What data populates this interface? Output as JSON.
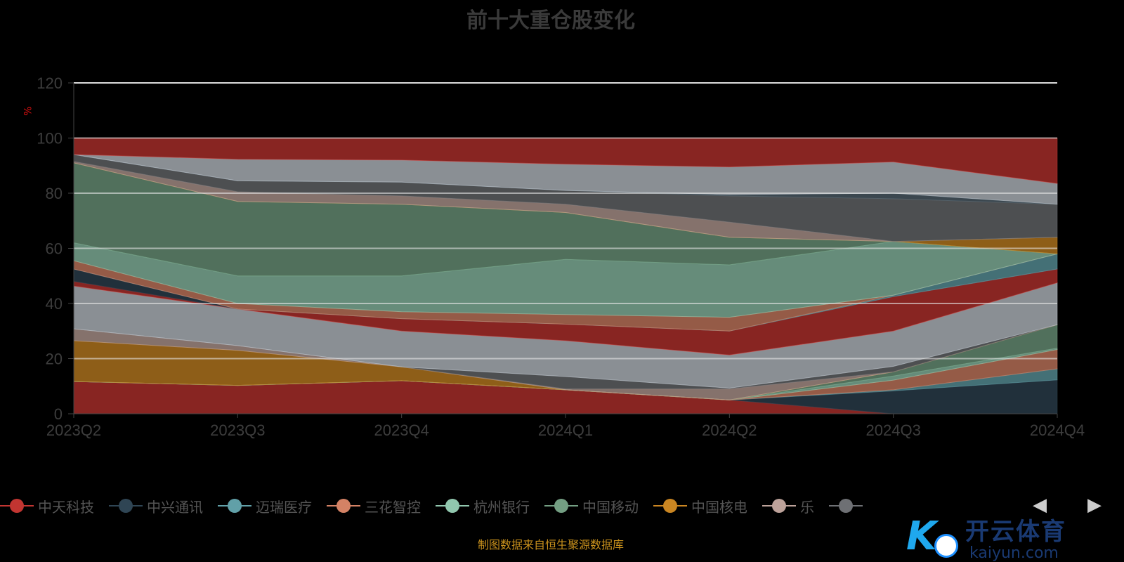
{
  "chart_data": {
    "type": "area",
    "stacked": true,
    "title": "前十大重仓股变化",
    "ylabel": "%",
    "xlabel": "",
    "ylim": [
      0,
      120
    ],
    "yticks": [
      "0",
      "20",
      "40",
      "60",
      "80",
      "100",
      "120"
    ],
    "categories": [
      "2023Q2",
      "2023Q3",
      "2023Q4",
      "2024Q1",
      "2024Q2",
      "2024Q3",
      "2024Q4"
    ],
    "grid": true,
    "legend_position": "bottom",
    "series": [
      {
        "name": "中天科技",
        "color": "#c23531",
        "values": [
          11.7,
          10.3,
          12,
          8.7,
          5,
          0,
          0
        ]
      },
      {
        "name": "中兴通讯",
        "color": "#2f4554",
        "values": [
          0,
          0,
          0,
          0,
          0,
          8.3,
          12.3
        ]
      },
      {
        "name": "迈瑞医疗",
        "color": "#61a0a8",
        "values": [
          0,
          0,
          0,
          0,
          0,
          0.4,
          4
        ]
      },
      {
        "name": "三花智控",
        "color": "#d48265",
        "values": [
          0,
          0,
          0,
          0,
          0,
          3.5,
          7
        ]
      },
      {
        "name": "杭州银行",
        "color": "#91c7ae",
        "values": [
          0,
          0,
          0,
          0,
          0,
          1.5,
          0.5
        ]
      },
      {
        "name": "中国移动",
        "color": "#749f83",
        "values": [
          0,
          0,
          0,
          0,
          0,
          1.5,
          8.5
        ]
      },
      {
        "name": "中国核电",
        "color": "#ca8622",
        "values": [
          14.8,
          12.7,
          5,
          0,
          0,
          0,
          0
        ]
      },
      {
        "name": "乐",
        "color": "#bda29a",
        "values": [
          4.3,
          1.7,
          0,
          0.3,
          4,
          0,
          0
        ]
      },
      {
        "name": "",
        "color": "#6e7074",
        "values": [
          0,
          0,
          0,
          4.5,
          0.3,
          2,
          0
        ]
      },
      {
        "name": "",
        "color": "#c4ccd3",
        "values": [
          15.5,
          13.3,
          13,
          13,
          12,
          12.8,
          15.2
        ]
      },
      {
        "name": "",
        "color": "#c23531",
        "values": [
          1.7,
          0,
          4.5,
          6,
          8.7,
          12.5,
          5
        ]
      },
      {
        "name": "",
        "color": "#2f4554",
        "values": [
          4.5,
          0,
          0,
          0,
          0,
          0,
          0
        ]
      },
      {
        "name": "",
        "color": "#61a0a8",
        "values": [
          0,
          0,
          0,
          0,
          0,
          0.5,
          5.5
        ]
      },
      {
        "name": "",
        "color": "#d48265",
        "values": [
          3,
          2,
          2.5,
          3.5,
          5,
          0,
          0
        ]
      },
      {
        "name": "",
        "color": "#91c7ae",
        "values": [
          6.5,
          10,
          13,
          20,
          19,
          19.5,
          0
        ]
      },
      {
        "name": "",
        "color": "#749f83",
        "values": [
          29,
          27,
          26,
          17,
          10,
          0,
          0
        ]
      },
      {
        "name": "",
        "color": "#ca8622",
        "values": [
          0,
          0,
          0,
          0,
          0,
          0,
          6
        ]
      },
      {
        "name": "",
        "color": "#bda29a",
        "values": [
          0.5,
          3.5,
          3,
          3,
          5.5,
          0,
          0
        ]
      },
      {
        "name": "",
        "color": "#6e7074",
        "values": [
          2.5,
          4,
          5,
          5,
          9.5,
          15.5,
          12
        ]
      },
      {
        "name": "",
        "color": "#546570",
        "values": [
          0,
          0,
          0,
          0,
          0.5,
          2,
          0
        ]
      },
      {
        "name": "",
        "color": "#c4ccd3",
        "values": [
          0,
          7.8,
          8,
          9.5,
          10,
          11.3,
          7.5
        ]
      },
      {
        "name": "",
        "color": "#c23531",
        "values": [
          6,
          7.7,
          8,
          9.5,
          10.5,
          8.7,
          16.5
        ]
      }
    ]
  },
  "legend": {
    "items": [
      {
        "label": "中天科技",
        "color": "#c23531"
      },
      {
        "label": "中兴通讯",
        "color": "#2f4554"
      },
      {
        "label": "迈瑞医疗",
        "color": "#61a0a8"
      },
      {
        "label": "三花智控",
        "color": "#d48265"
      },
      {
        "label": "杭州银行",
        "color": "#91c7ae"
      },
      {
        "label": "中国移动",
        "color": "#749f83"
      },
      {
        "label": "中国核电",
        "color": "#ca8622"
      },
      {
        "label": "乐",
        "color": "#bda29a"
      },
      {
        "label": "",
        "color": "#6e7074"
      }
    ],
    "prev_icon": "◀",
    "next_icon": "▶"
  },
  "source_note": "制图数据来自恒生聚源数据库",
  "watermark": {
    "cn": "开云体育",
    "en": "kaiyun.com",
    "mark": "K"
  }
}
